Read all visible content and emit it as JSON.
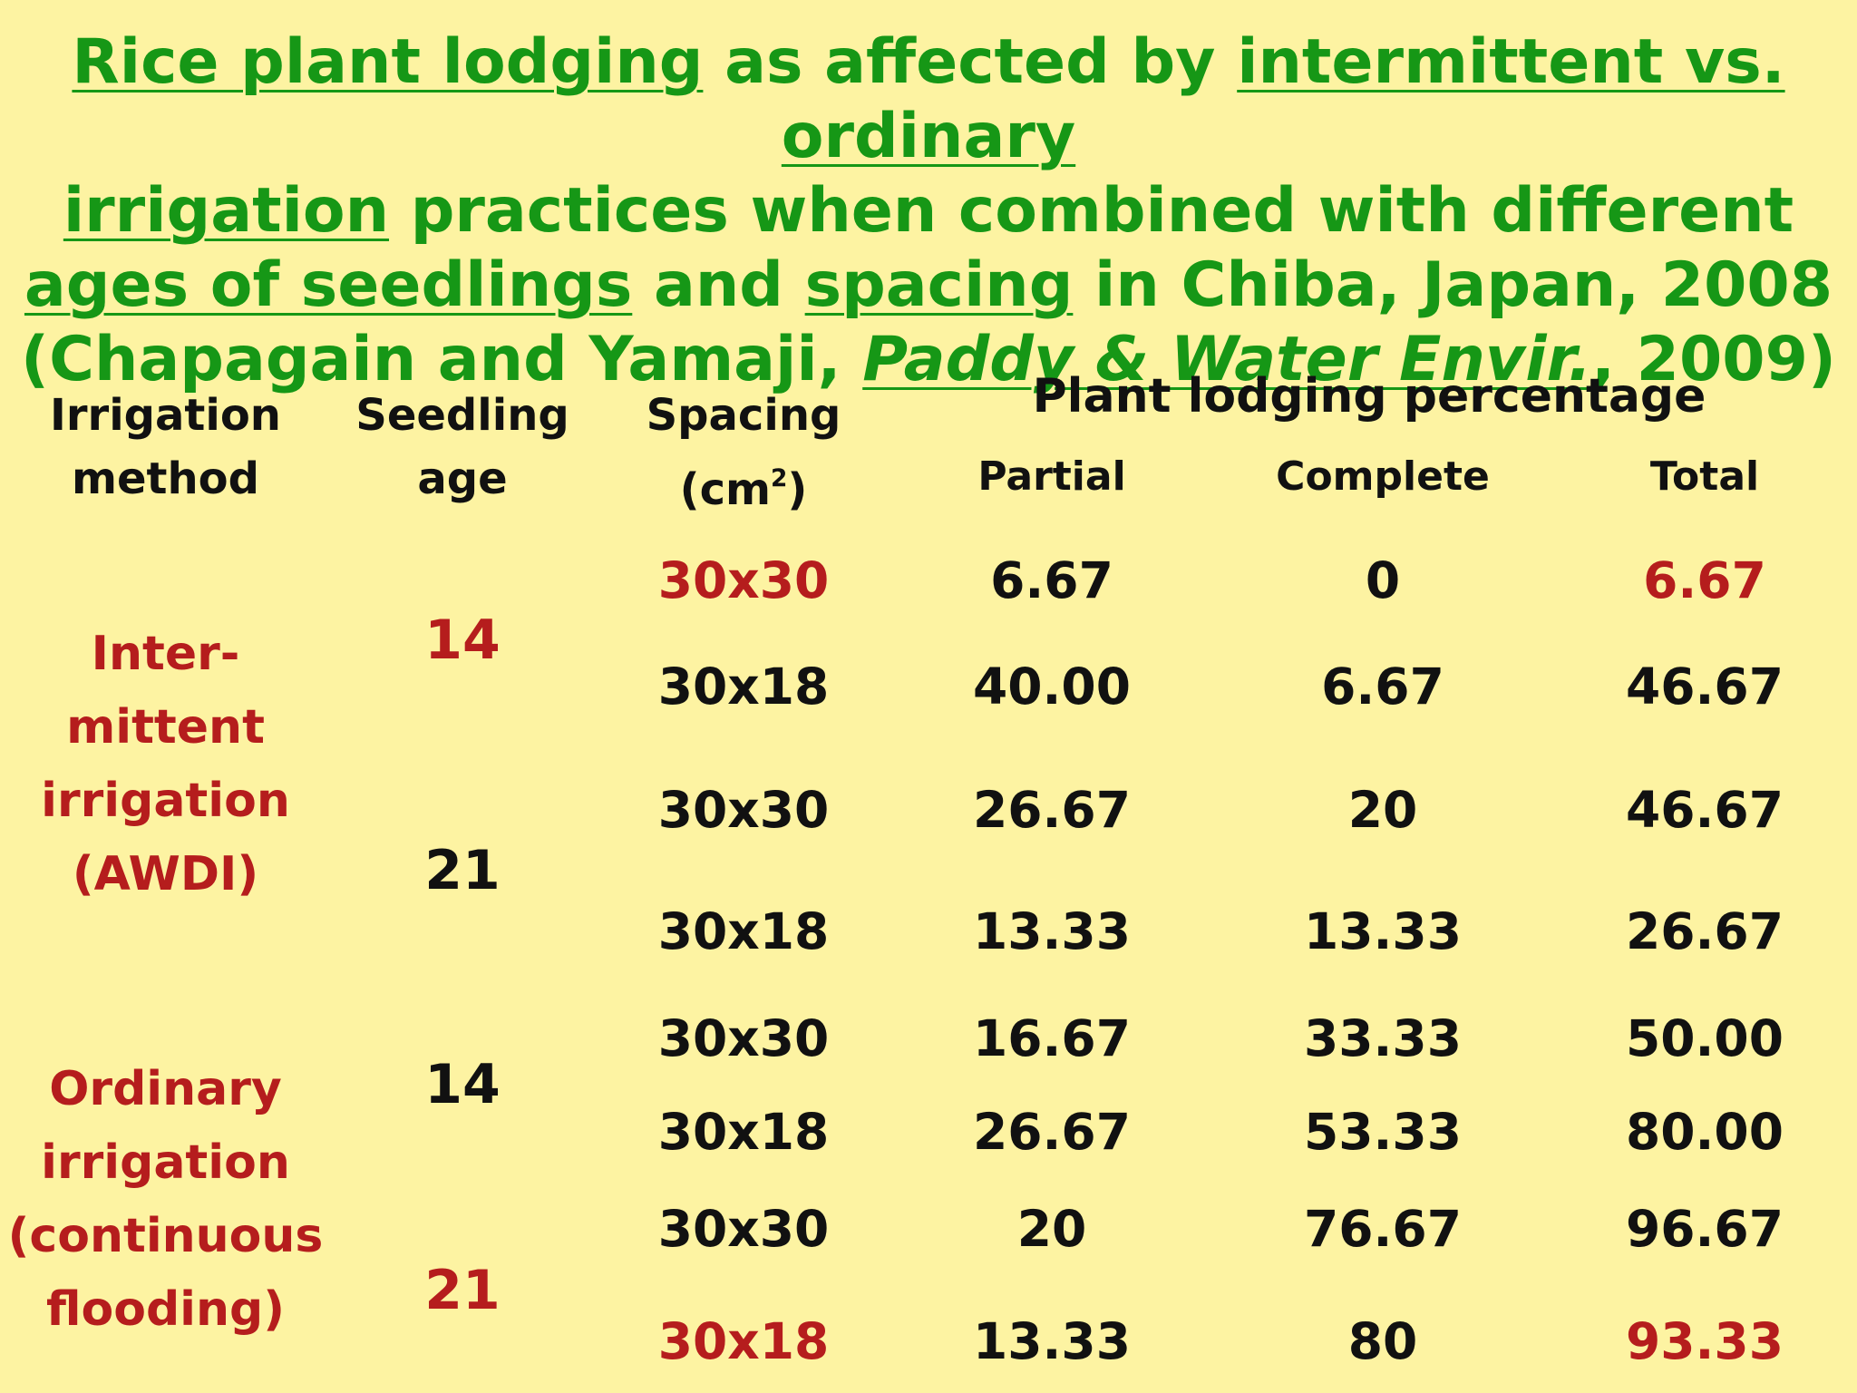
{
  "title": {
    "line1_a": "Rice plant lodging",
    "line1_b": " as affected by ",
    "line1_c": "intermittent vs. ordinary",
    "line2_a": "irrigation",
    "line2_b": " practices when combined with different",
    "line3_a": "ages of seedlings",
    "line3_b": " and ",
    "line3_c": "spacing",
    "line3_d": " in Chiba, Japan, 2008",
    "line4_a": "(Chapagain and Yamaji, ",
    "line4_b": "Paddy & Water Envir.",
    "line4_c": ", 2009)"
  },
  "headers": {
    "irrigation_1": "Irrigation",
    "irrigation_2": "method",
    "seedling_1": "Seedling",
    "seedling_2": "age",
    "spacing_1": "Spacing",
    "spacing_2a": "(cm",
    "spacing_sup": "2",
    "spacing_2b": ")",
    "lodging": "Plant lodging percentage",
    "partial": "Partial",
    "complete": "Complete",
    "total": "Total"
  },
  "groups": {
    "intermittent": [
      "Inter-",
      "mittent",
      "irrigation",
      "(AWDI)"
    ],
    "ordinary": [
      "Ordinary",
      "irrigation",
      "(continuous",
      "flooding)"
    ]
  },
  "ages": [
    "14",
    "21",
    "14",
    "21"
  ],
  "rows": [
    {
      "spacing": "30x30",
      "partial": "6.67",
      "complete": "0",
      "total": "6.67"
    },
    {
      "spacing": "30x18",
      "partial": "40.00",
      "complete": "6.67",
      "total": "46.67"
    },
    {
      "spacing": "30x30",
      "partial": "26.67",
      "complete": "20",
      "total": "46.67"
    },
    {
      "spacing": "30x18",
      "partial": "13.33",
      "complete": "13.33",
      "total": "26.67"
    },
    {
      "spacing": "30x30",
      "partial": "16.67",
      "complete": "33.33",
      "total": "50.00"
    },
    {
      "spacing": "30x18",
      "partial": "26.67",
      "complete": "53.33",
      "total": "80.00"
    },
    {
      "spacing": "30x30",
      "partial": "20",
      "complete": "76.67",
      "total": "96.67"
    },
    {
      "spacing": "30x18",
      "partial": "13.33",
      "complete": "80",
      "total": "93.33"
    }
  ],
  "colors": {
    "background": "#fdf3a2",
    "title": "#169716",
    "highlight": "#b51d1d",
    "text": "#111111"
  }
}
